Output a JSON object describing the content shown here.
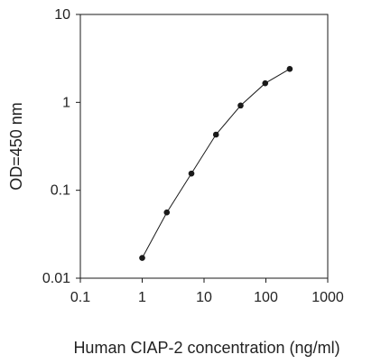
{
  "chart_data": {
    "type": "line",
    "xlabel": "Human CIAP-2 concentration (ng/ml)",
    "ylabel": "OD=450 nm",
    "xscale": "log",
    "yscale": "log",
    "xlim": [
      0.1,
      1000
    ],
    "ylim": [
      0.01,
      10
    ],
    "xticks": [
      "0.1",
      "1",
      "10",
      "100",
      "1000"
    ],
    "yticks": [
      "0.01",
      "0.1",
      "1",
      "10"
    ],
    "grid": false,
    "line_color": "#1a1a1a",
    "marker_color": "#1a1a1a",
    "series": [
      {
        "x": [
          1,
          2.5,
          6.25,
          15.6,
          39,
          97.5,
          243
        ],
        "y": [
          0.017,
          0.056,
          0.155,
          0.43,
          0.92,
          1.65,
          2.4
        ]
      }
    ]
  }
}
